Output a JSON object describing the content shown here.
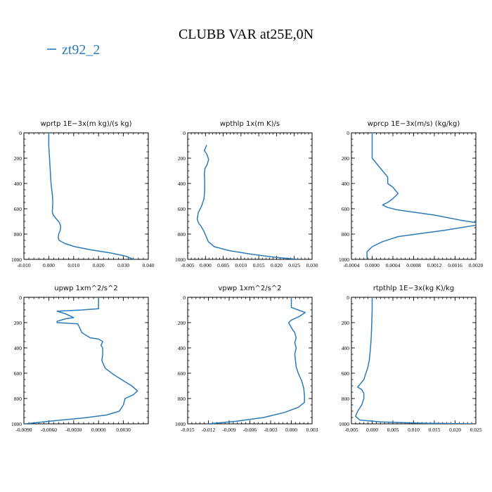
{
  "figure": {
    "title": "CLUBB VAR at25E,0N",
    "legend": {
      "label": "zt92_2",
      "color": "#2b7bba"
    }
  },
  "chart_data": [
    {
      "type": "line",
      "title": "wprtp  1E−3x(m kg)/(s kg)",
      "xlim": [
        -0.01,
        0.04
      ],
      "xticks": [
        -0.01,
        0.0,
        0.01,
        0.02,
        0.03,
        0.04
      ],
      "xtick_labels": [
        "-0.010",
        "0.000",
        "0.010",
        "0.020",
        "0.030",
        "0.040"
      ],
      "ylim": [
        1000,
        0
      ],
      "yticks": [
        0,
        200,
        400,
        600,
        800,
        1000
      ],
      "ytick_labels": [
        "0",
        "200",
        "400",
        "600",
        "800",
        "1000"
      ],
      "series": [
        {
          "color": "#2b7bba",
          "x": [
            0.0,
            0.0,
            0.0003,
            0.0006,
            0.0009,
            0.0012,
            0.0015,
            0.0016,
            0.0015,
            0.0014,
            0.0018,
            0.003,
            0.0043,
            0.0048,
            0.0046,
            0.004,
            0.0038,
            0.0042,
            0.0065,
            0.0105,
            0.017,
            0.025,
            0.031,
            0.034
          ],
          "y": [
            0,
            100,
            200,
            300,
            400,
            450,
            500,
            550,
            600,
            625,
            650,
            680,
            710,
            740,
            770,
            800,
            830,
            850,
            875,
            900,
            925,
            950,
            975,
            1000
          ]
        }
      ]
    },
    {
      "type": "line",
      "title": "wpthlp  1x(m K)/s",
      "xlim": [
        -0.005,
        0.03
      ],
      "xticks": [
        -0.005,
        0.0,
        0.005,
        0.01,
        0.015,
        0.02,
        0.025,
        0.03
      ],
      "xtick_labels": [
        "-0.005",
        "0.000",
        "0.005",
        "0.010",
        "0.015",
        "0.020",
        "0.025",
        "0.030"
      ],
      "ylim": [
        1000,
        0
      ],
      "yticks": [
        0,
        200,
        400,
        600,
        800,
        1000
      ],
      "ytick_labels": [
        "0",
        "200",
        "400",
        "600",
        "800",
        "1000"
      ],
      "series": [
        {
          "color": "#2b7bba",
          "x": [
            0.0003,
            0.0,
            -0.0003,
            0.0004,
            0.0009,
            0.0005,
            -0.0001,
            -0.0003,
            -0.0002,
            -0.0002,
            -0.0004,
            -0.0011,
            -0.002,
            -0.0023,
            -0.002,
            -0.0012,
            -0.0004,
            0.0002,
            0.0008,
            0.0025,
            0.0065,
            0.013,
            0.02,
            0.026
          ],
          "y": [
            100,
            120,
            140,
            170,
            210,
            250,
            280,
            320,
            380,
            450,
            520,
            580,
            630,
            680,
            710,
            740,
            780,
            820,
            860,
            900,
            930,
            960,
            985,
            1000
          ]
        }
      ]
    },
    {
      "type": "line",
      "title": "wprcp  1E−3x(m/s) (kg/kg)",
      "xlim": [
        -0.0004,
        0.002
      ],
      "xticks": [
        -0.0004,
        0.0,
        0.0004,
        0.0008,
        0.0012,
        0.0016,
        0.002
      ],
      "xtick_labels": [
        "-0.0004",
        "0.0000",
        "0.0004",
        "0.0008",
        "0.0012",
        "0.0016",
        "0.0020"
      ],
      "ylim": [
        1000,
        0
      ],
      "yticks": [
        0,
        200,
        400,
        600,
        800,
        1000
      ],
      "ytick_labels": [
        "0",
        "200",
        "400",
        "600",
        "800",
        "1000"
      ],
      "series": [
        {
          "color": "#2b7bba",
          "x": [
            0.0,
            0.0,
            0.0,
            0.0001,
            0.0002,
            0.0003,
            0.0003,
            0.0004,
            0.0005,
            0.0004,
            0.0003,
            0.0002,
            0.0003,
            0.0005,
            0.0012,
            0.0017,
            0.002,
            0.002,
            0.0014,
            0.0005,
            0.0002,
            0.0,
            -0.0001,
            -0.0001
          ],
          "y": [
            0,
            150,
            200,
            250,
            300,
            350,
            400,
            430,
            480,
            520,
            550,
            570,
            590,
            610,
            650,
            690,
            710,
            730,
            770,
            820,
            860,
            900,
            940,
            1000
          ]
        }
      ]
    },
    {
      "type": "line",
      "title": "upwp  1xm^2/s^2",
      "xlim": [
        -0.009,
        0.006
      ],
      "xticks": [
        -0.009,
        -0.006,
        -0.003,
        0.0,
        0.003
      ],
      "xtick_labels": [
        "-0.0090",
        "-0.0060",
        "-0.0030",
        "0.0000",
        "0.0030"
      ],
      "ylim": [
        1000,
        0
      ],
      "yticks": [
        0,
        200,
        400,
        600,
        800,
        1000
      ],
      "ytick_labels": [
        "0",
        "200",
        "400",
        "600",
        "800",
        "1000"
      ],
      "series": [
        {
          "color": "#2b7bba",
          "x": [
            0.0,
            0.0,
            -0.002,
            -0.005,
            -0.004,
            -0.003,
            -0.004,
            -0.005,
            -0.005,
            -0.0025,
            -0.002,
            -0.001,
            0.0,
            0.0005,
            0.0003,
            0.0005,
            0.0005,
            0.0004,
            0.0008,
            0.0018,
            0.003,
            0.004,
            0.0047,
            0.0042,
            0.0032,
            0.003,
            0.0025,
            0.001,
            -0.002,
            -0.006,
            -0.0088
          ],
          "y": [
            0,
            90,
            100,
            110,
            130,
            160,
            170,
            190,
            200,
            210,
            280,
            320,
            330,
            350,
            380,
            400,
            450,
            500,
            560,
            610,
            660,
            700,
            740,
            770,
            800,
            850,
            900,
            930,
            955,
            980,
            1000
          ]
        }
      ]
    },
    {
      "type": "line",
      "title": "vpwp  1xm^2/s^2",
      "xlim": [
        -0.015,
        0.003
      ],
      "xticks": [
        -0.015,
        -0.012,
        -0.009,
        -0.006,
        -0.003,
        0.0,
        0.003
      ],
      "xtick_labels": [
        "-0.015",
        "-0.012",
        "-0.009",
        "-0.006",
        "-0.003",
        "0.000",
        "0.003"
      ],
      "ylim": [
        1000,
        0
      ],
      "yticks": [
        0,
        200,
        400,
        600,
        800,
        1000
      ],
      "ytick_labels": [
        "0",
        "200",
        "400",
        "600",
        "800",
        "1000"
      ],
      "series": [
        {
          "color": "#2b7bba",
          "x": [
            0.0,
            0.0,
            0.001,
            0.002,
            0.0012,
            0.0,
            -0.0004,
            0.0,
            0.0005,
            0.0007,
            0.0005,
            0.0007,
            0.0005,
            0.0006,
            0.0007,
            0.001,
            0.0015,
            0.0018,
            0.0019,
            0.0019,
            0.001,
            -0.001,
            -0.004,
            -0.008,
            -0.012
          ],
          "y": [
            0,
            80,
            100,
            120,
            150,
            180,
            200,
            240,
            280,
            320,
            360,
            400,
            450,
            500,
            550,
            600,
            660,
            720,
            780,
            830,
            870,
            910,
            950,
            980,
            1000
          ]
        }
      ]
    },
    {
      "type": "line",
      "title": "rtpthlp  1E−3x(kg K)/kg",
      "xlim": [
        -0.005,
        0.025
      ],
      "xticks": [
        -0.005,
        0.0,
        0.005,
        0.01,
        0.015,
        0.02,
        0.025
      ],
      "xtick_labels": [
        "-0.005",
        "0.000",
        "0.005",
        "0.010",
        "0.015",
        "0.020",
        "0.025"
      ],
      "ylim": [
        1000,
        0
      ],
      "yticks": [
        0,
        200,
        400,
        600,
        800,
        1000
      ],
      "ytick_labels": [
        "0",
        "200",
        "400",
        "600",
        "800",
        "1000"
      ],
      "series": [
        {
          "color": "#2b7bba",
          "x": [
            0.0,
            0.0,
            -0.0001,
            -0.0002,
            -0.0004,
            -0.0007,
            -0.0011,
            -0.0015,
            -0.002,
            -0.003,
            -0.0035,
            -0.0025,
            -0.002,
            -0.002,
            -0.0025,
            -0.0035,
            -0.004,
            -0.003,
            0.002,
            0.012,
            0.024
          ],
          "y": [
            0,
            100,
            200,
            300,
            400,
            500,
            560,
            600,
            650,
            690,
            710,
            730,
            760,
            800,
            850,
            900,
            940,
            970,
            985,
            995,
            1000
          ]
        }
      ]
    }
  ]
}
